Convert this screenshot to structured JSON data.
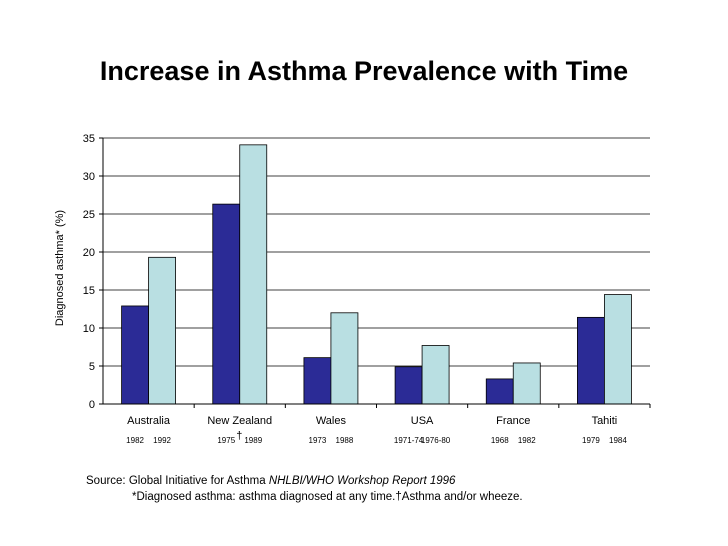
{
  "title": "Increase in Asthma Prevalence with Time",
  "source": {
    "prefix": "Source: Global Initiative for Asthma ",
    "report": "NHLBI/WHO Workshop Report 1996",
    "note": "*Diagnosed asthma: asthma diagnosed at any time.",
    "dagger": "†",
    "dagger_note": "Asthma and/or wheeze."
  },
  "chart_data": {
    "type": "bar",
    "ylabel": "Diagnosed asthma* (%)",
    "xlabel": "",
    "ylim": [
      0,
      35
    ],
    "yticks": [
      0,
      5,
      10,
      15,
      20,
      25,
      30,
      35
    ],
    "grid": true,
    "categories": [
      "Australia",
      "New Zealand",
      "Wales",
      "USA",
      "France",
      "Tahiti"
    ],
    "period_labels": [
      [
        "1982",
        "1992"
      ],
      [
        "1975",
        "1989"
      ],
      [
        "1973",
        "1988"
      ],
      [
        "1971-74",
        "1976-80"
      ],
      [
        "1968",
        "1982"
      ],
      [
        "1979",
        "1984"
      ]
    ],
    "dagger_category": 1,
    "series": [
      {
        "values": [
          12.9,
          26.3,
          6.1,
          4.9,
          3.3,
          11.4
        ],
        "color": "#2b2b96"
      },
      {
        "values": [
          19.3,
          34.1,
          12.0,
          7.7,
          5.4,
          14.4
        ],
        "color": "#b9dfe2"
      }
    ]
  }
}
